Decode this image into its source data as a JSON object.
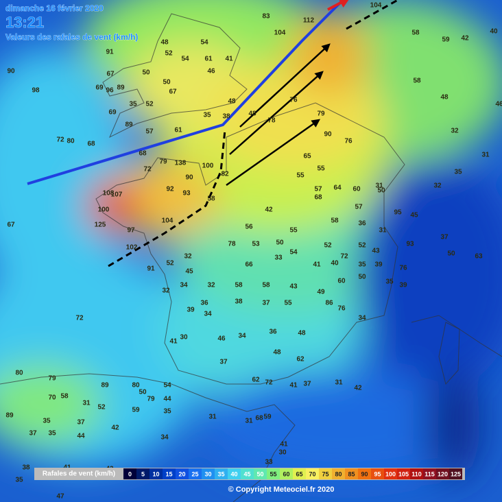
{
  "header": {
    "date": "dimanche 16 février 2020",
    "time": "13:21",
    "subtitle": "Valeurs des rafales de vent (km/h)"
  },
  "footer": {
    "copyright": "© Copyright Meteociel.fr 2020"
  },
  "legend": {
    "title": "Rafales de vent (km/h)",
    "steps": [
      {
        "value": 0,
        "color": "#00003a"
      },
      {
        "value": 5,
        "color": "#001a6a"
      },
      {
        "value": 10,
        "color": "#0030a0"
      },
      {
        "value": 15,
        "color": "#0040c8"
      },
      {
        "value": 20,
        "color": "#1050e0"
      },
      {
        "value": 25,
        "color": "#1870f0"
      },
      {
        "value": 30,
        "color": "#2090f0"
      },
      {
        "value": 35,
        "color": "#30b0f0"
      },
      {
        "value": 40,
        "color": "#40d0f0"
      },
      {
        "value": 45,
        "color": "#50e0d0"
      },
      {
        "value": 50,
        "color": "#60e8b0"
      },
      {
        "value": 55,
        "color": "#80f080"
      },
      {
        "value": 60,
        "color": "#b0f060"
      },
      {
        "value": 65,
        "color": "#e0f050"
      },
      {
        "value": 70,
        "color": "#f8f060"
      },
      {
        "value": 75,
        "color": "#f0d040"
      },
      {
        "value": 80,
        "color": "#f0b030"
      },
      {
        "value": 85,
        "color": "#f09020"
      },
      {
        "value": 90,
        "color": "#f07010"
      },
      {
        "value": 95,
        "color": "#e85010"
      },
      {
        "value": 100,
        "color": "#e03010"
      },
      {
        "value": 105,
        "color": "#d02010"
      },
      {
        "value": 110,
        "color": "#b01010"
      },
      {
        "value": 115,
        "color": "#901020"
      },
      {
        "value": 120,
        "color": "#701020"
      },
      {
        "value": 125,
        "color": "#501020"
      }
    ]
  },
  "station_values": [
    90,
    98,
    67,
    69,
    96,
    89,
    50,
    50,
    67,
    35,
    52,
    69,
    89,
    57,
    61,
    35,
    38,
    48,
    52,
    54,
    54,
    61,
    46,
    41,
    91,
    72,
    80,
    68,
    68,
    72,
    79,
    138,
    100,
    90,
    93,
    92,
    108,
    107,
    100,
    125,
    97,
    102,
    104,
    58,
    82,
    83,
    104,
    112,
    104,
    58,
    59,
    42,
    40,
    58,
    48,
    46,
    32,
    31,
    35,
    32,
    50,
    95,
    45,
    37,
    50,
    63,
    67,
    72,
    41,
    30,
    46,
    34,
    36,
    48,
    48,
    62,
    37,
    62,
    72,
    41,
    37,
    31,
    42,
    80,
    79,
    89,
    80,
    50,
    54,
    79,
    44,
    70,
    58,
    31,
    52,
    89,
    35,
    37,
    42,
    59,
    35,
    37,
    35,
    44,
    34,
    31,
    31,
    68,
    59,
    41,
    30,
    33,
    38,
    41,
    43,
    35,
    47,
    48,
    48,
    78,
    76,
    79,
    90,
    76,
    65,
    55,
    57,
    55,
    68,
    64,
    60,
    31,
    57,
    58,
    36,
    31,
    42,
    56,
    55,
    78,
    53,
    50,
    52,
    52,
    43,
    66,
    33,
    54,
    41,
    40,
    72,
    35,
    39,
    76,
    93,
    35,
    39,
    58,
    58,
    43,
    49,
    60,
    50,
    38,
    37,
    55,
    86,
    76,
    34,
    36,
    39,
    34,
    32,
    45,
    34,
    32,
    91,
    52,
    32
  ]
}
